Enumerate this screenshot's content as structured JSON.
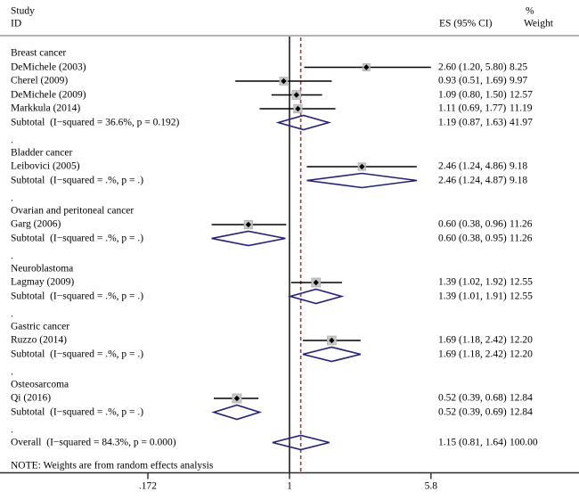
{
  "figure": {
    "header": {
      "study_line1": "Study",
      "study_line2": "ID",
      "es_header": "ES (95% CI)",
      "pct_header": "%",
      "weight_header": "Weight"
    },
    "note": "NOTE: Weights are from random effects analysis",
    "separator": "."
  },
  "colors": {
    "text": "#000000",
    "ci_line": "#000000",
    "null_line": "#000000",
    "dashed_line": "#9d3c3e",
    "diamond": "#21217a",
    "weight_box_fill": "#c8c8c8",
    "weight_box_stroke": "#aeaeae",
    "marker": "#000000",
    "header_rule": "#b3b3b3",
    "axis_line": "#2b2b2b"
  },
  "chart_data": {
    "type": "forest",
    "x_scale": "log",
    "xticks": [
      ".172",
      "1",
      "5.8"
    ],
    "xtick_values": [
      0.172,
      1,
      5.8
    ],
    "null_line_value": 1,
    "dashed_ref_value": 1.15,
    "groups": [
      {
        "label": "Breast cancer",
        "studies": [
          {
            "name": "DeMichele (2003)",
            "es": 2.6,
            "lo": 1.2,
            "hi": 5.8,
            "es_text": "2.60 (1.20, 5.80)",
            "weight": 8.25,
            "weight_text": "8.25"
          },
          {
            "name": "Cherel (2009)",
            "es": 0.93,
            "lo": 0.51,
            "hi": 1.69,
            "es_text": "0.93 (0.51, 1.69)",
            "weight": 9.97,
            "weight_text": "9.97"
          },
          {
            "name": "DeMichele (2009)",
            "es": 1.09,
            "lo": 0.8,
            "hi": 1.5,
            "es_text": "1.09 (0.80, 1.50)",
            "weight": 12.57,
            "weight_text": "12.57"
          },
          {
            "name": "Markkula (2014)",
            "es": 1.11,
            "lo": 0.69,
            "hi": 1.77,
            "es_text": "1.11 (0.69, 1.77)",
            "weight": 11.19,
            "weight_text": "11.19"
          }
        ],
        "subtotal": {
          "name": "Subtotal  (I−squared = 36.6%, p = 0.192)",
          "es": 1.19,
          "lo": 0.87,
          "hi": 1.63,
          "es_text": "1.19 (0.87, 1.63)",
          "weight_text": "41.97"
        }
      },
      {
        "label": "Bladder cancer",
        "studies": [
          {
            "name": "Leibovici (2005)",
            "es": 2.46,
            "lo": 1.24,
            "hi": 4.86,
            "es_text": "2.46 (1.24, 4.86)",
            "weight": 9.18,
            "weight_text": "9.18"
          }
        ],
        "subtotal": {
          "name": "Subtotal  (I−squared = .%, p = .)",
          "es": 2.46,
          "lo": 1.24,
          "hi": 4.87,
          "es_text": "2.46 (1.24, 4.87)",
          "weight_text": "9.18"
        }
      },
      {
        "label": "Ovarian and peritoneal cancer",
        "studies": [
          {
            "name": "Garg (2006)",
            "es": 0.6,
            "lo": 0.38,
            "hi": 0.96,
            "es_text": "0.60 (0.38, 0.96)",
            "weight": 11.26,
            "weight_text": "11.26"
          }
        ],
        "subtotal": {
          "name": "Subtotal  (I−squared = .%, p = .)",
          "es": 0.6,
          "lo": 0.38,
          "hi": 0.95,
          "es_text": "0.60 (0.38, 0.95)",
          "weight_text": "11.26"
        }
      },
      {
        "label": "Neuroblastoma",
        "studies": [
          {
            "name": "Lagmay (2009)",
            "es": 1.39,
            "lo": 1.02,
            "hi": 1.92,
            "es_text": "1.39 (1.02, 1.92)",
            "weight": 12.55,
            "weight_text": "12.55"
          }
        ],
        "subtotal": {
          "name": "Subtotal  (I−squared = .%, p = .)",
          "es": 1.39,
          "lo": 1.01,
          "hi": 1.91,
          "es_text": "1.39 (1.01, 1.91)",
          "weight_text": "12.55"
        }
      },
      {
        "label": "Gastric cancer",
        "studies": [
          {
            "name": "Ruzzo (2014)",
            "es": 1.69,
            "lo": 1.18,
            "hi": 2.42,
            "es_text": "1.69 (1.18, 2.42)",
            "weight": 12.2,
            "weight_text": "12.20"
          }
        ],
        "subtotal": {
          "name": "Subtotal  (I−squared = .%, p = .)",
          "es": 1.69,
          "lo": 1.18,
          "hi": 2.42,
          "es_text": "1.69 (1.18, 2.42)",
          "weight_text": "12.20"
        }
      },
      {
        "label": "Osteosarcoma",
        "studies": [
          {
            "name": "Qi (2016)",
            "es": 0.52,
            "lo": 0.39,
            "hi": 0.68,
            "es_text": "0.52 (0.39, 0.68)",
            "weight": 12.84,
            "weight_text": "12.84"
          }
        ],
        "subtotal": {
          "name": "Subtotal  (I−squared = .%, p = .)",
          "es": 0.52,
          "lo": 0.39,
          "hi": 0.69,
          "es_text": "0.52 (0.39, 0.69)",
          "weight_text": "12.84"
        }
      }
    ],
    "overall": {
      "name": "Overall  (I−squared = 84.3%, p = 0.000)",
      "es": 1.15,
      "lo": 0.81,
      "hi": 1.64,
      "es_text": "1.15 (0.81, 1.64)",
      "weight_text": "100.00"
    }
  }
}
